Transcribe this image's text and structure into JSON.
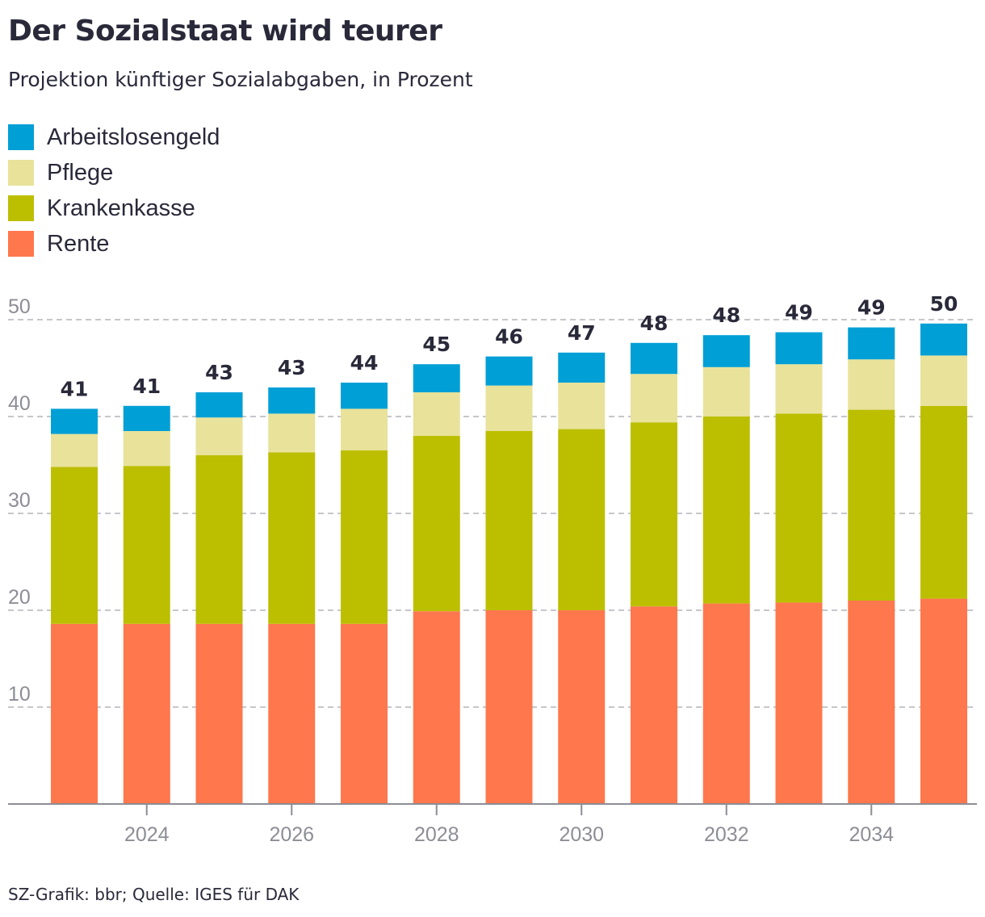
{
  "header": {
    "title": "Der Sozialstaat wird teurer",
    "subtitle": "Projektion künftiger Sozialabgaben, in Prozent"
  },
  "legend": [
    {
      "label": "Arbeitslosengeld",
      "color": "#009fd6"
    },
    {
      "label": "Pflege",
      "color": "#e8e29b"
    },
    {
      "label": "Krankenkasse",
      "color": "#bcbf00"
    },
    {
      "label": "Rente",
      "color": "#ff774c"
    }
  ],
  "footer": {
    "source": "SZ-Grafik: bbr; Quelle: IGES für DAK"
  },
  "chart_data": {
    "type": "bar",
    "stacked": true,
    "title": "Der Sozialstaat wird teurer",
    "subtitle": "Projektion künftiger Sozialabgaben, in Prozent",
    "categories": [
      2023,
      2024,
      2025,
      2026,
      2027,
      2028,
      2029,
      2030,
      2031,
      2032,
      2033,
      2034,
      2035
    ],
    "x_tick_labels": [
      "2024",
      "2026",
      "2028",
      "2030",
      "2032",
      "2034"
    ],
    "y_tick_labels": [
      "10",
      "20",
      "30",
      "40",
      "50"
    ],
    "ylim": [
      0,
      50
    ],
    "grid": true,
    "legend_position": "top-left",
    "series": [
      {
        "name": "Rente",
        "color": "#ff774c",
        "values": [
          18.6,
          18.6,
          18.6,
          18.6,
          18.6,
          19.9,
          20.0,
          20.0,
          20.4,
          20.7,
          20.8,
          21.0,
          21.2
        ]
      },
      {
        "name": "Krankenkasse",
        "color": "#bcbf00",
        "values": [
          16.2,
          16.3,
          17.4,
          17.7,
          17.9,
          18.1,
          18.5,
          18.7,
          19.0,
          19.3,
          19.5,
          19.7,
          19.9
        ]
      },
      {
        "name": "Pflege",
        "color": "#e8e29b",
        "values": [
          3.4,
          3.6,
          3.9,
          4.0,
          4.3,
          4.5,
          4.7,
          4.8,
          5.0,
          5.1,
          5.1,
          5.2,
          5.2
        ]
      },
      {
        "name": "Arbeitslosengeld",
        "color": "#009fd6",
        "values": [
          2.6,
          2.6,
          2.6,
          2.7,
          2.7,
          2.9,
          3.0,
          3.1,
          3.2,
          3.3,
          3.3,
          3.3,
          3.3
        ]
      }
    ],
    "totals": [
      "41",
      "41",
      "43",
      "43",
      "44",
      "45",
      "46",
      "47",
      "48",
      "48",
      "49",
      "49",
      "50"
    ]
  }
}
